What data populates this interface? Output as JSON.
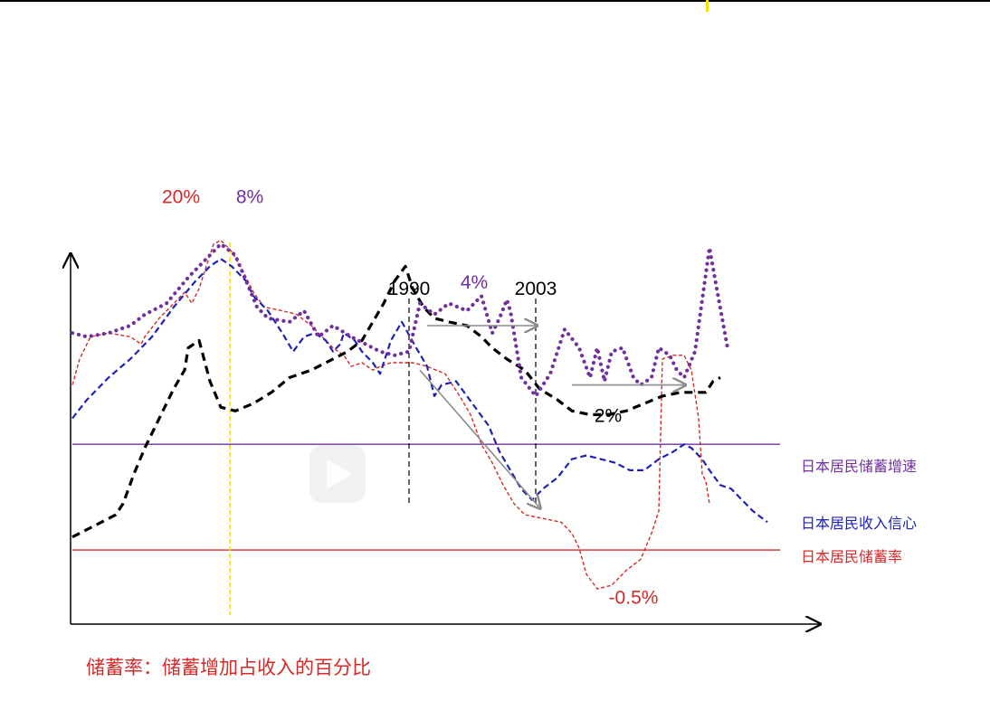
{
  "chart_data": {
    "type": "line",
    "title": "",
    "xlabel": "",
    "ylabel": "",
    "legend_placement": "right",
    "colors": {
      "savings_growth": "#7030a0",
      "income_confidence": "#1f22b4",
      "savings_rate": "#d42a2a",
      "black_series": "#000000",
      "guide_yellow": "#f2e600",
      "arrow_gray": "#8c8c8c"
    },
    "series": [
      {
        "id": "savings_growth",
        "name": "日本居民储蓄增速",
        "style": "dotted",
        "legend_line_y": 0.48,
        "points": [
          [
            0,
            0.78
          ],
          [
            0.02,
            0.77
          ],
          [
            0.05,
            0.78
          ],
          [
            0.08,
            0.8
          ],
          [
            0.1,
            0.83
          ],
          [
            0.13,
            0.86
          ],
          [
            0.16,
            0.93
          ],
          [
            0.18,
            0.97
          ],
          [
            0.205,
            1.02
          ],
          [
            0.225,
            0.99
          ],
          [
            0.24,
            0.92
          ],
          [
            0.255,
            0.85
          ],
          [
            0.27,
            0.82
          ],
          [
            0.3,
            0.81
          ],
          [
            0.32,
            0.84
          ],
          [
            0.34,
            0.77
          ],
          [
            0.36,
            0.8
          ],
          [
            0.385,
            0.77
          ],
          [
            0.405,
            0.75
          ],
          [
            0.425,
            0.73
          ],
          [
            0.445,
            0.72
          ],
          [
            0.465,
            0.73
          ],
          [
            0.48,
            0.86
          ],
          [
            0.5,
            0.83
          ],
          [
            0.52,
            0.86
          ],
          [
            0.545,
            0.84
          ],
          [
            0.565,
            0.88
          ],
          [
            0.58,
            0.78
          ],
          [
            0.59,
            0.82
          ],
          [
            0.6,
            0.87
          ],
          [
            0.605,
            0.84
          ],
          [
            0.62,
            0.66
          ],
          [
            0.64,
            0.61
          ],
          [
            0.66,
            0.67
          ],
          [
            0.68,
            0.79
          ],
          [
            0.7,
            0.74
          ],
          [
            0.715,
            0.66
          ],
          [
            0.725,
            0.74
          ],
          [
            0.735,
            0.65
          ],
          [
            0.745,
            0.73
          ],
          [
            0.76,
            0.74
          ],
          [
            0.775,
            0.66
          ],
          [
            0.785,
            0.64
          ],
          [
            0.8,
            0.66
          ],
          [
            0.81,
            0.74
          ],
          [
            0.825,
            0.72
          ],
          [
            0.835,
            0.68
          ],
          [
            0.845,
            0.66
          ],
          [
            0.86,
            0.73
          ],
          [
            0.88,
            1.01
          ],
          [
            0.89,
            0.9
          ],
          [
            0.905,
            0.74
          ]
        ]
      },
      {
        "id": "income_confidence",
        "name": "日本居民收入信心",
        "style": "dashed",
        "legend_line_y": null,
        "points": [
          [
            0,
            0.55
          ],
          [
            0.02,
            0.6
          ],
          [
            0.05,
            0.66
          ],
          [
            0.08,
            0.71
          ],
          [
            0.11,
            0.77
          ],
          [
            0.14,
            0.85
          ],
          [
            0.17,
            0.92
          ],
          [
            0.19,
            0.96
          ],
          [
            0.205,
            0.98
          ],
          [
            0.22,
            0.96
          ],
          [
            0.24,
            0.92
          ],
          [
            0.25,
            0.88
          ],
          [
            0.27,
            0.84
          ],
          [
            0.29,
            0.78
          ],
          [
            0.305,
            0.73
          ],
          [
            0.32,
            0.77
          ],
          [
            0.335,
            0.78
          ],
          [
            0.35,
            0.76
          ],
          [
            0.36,
            0.73
          ],
          [
            0.37,
            0.75
          ],
          [
            0.375,
            0.78
          ],
          [
            0.39,
            0.76
          ],
          [
            0.4,
            0.73
          ],
          [
            0.415,
            0.7
          ],
          [
            0.425,
            0.67
          ],
          [
            0.44,
            0.76
          ],
          [
            0.455,
            0.81
          ],
          [
            0.475,
            0.74
          ],
          [
            0.49,
            0.69
          ],
          [
            0.5,
            0.61
          ],
          [
            0.51,
            0.64
          ],
          [
            0.53,
            0.65
          ],
          [
            0.545,
            0.61
          ],
          [
            0.56,
            0.57
          ],
          [
            0.575,
            0.53
          ],
          [
            0.59,
            0.46
          ],
          [
            0.605,
            0.41
          ],
          [
            0.62,
            0.36
          ],
          [
            0.635,
            0.33
          ],
          [
            0.65,
            0.36
          ],
          [
            0.67,
            0.39
          ],
          [
            0.69,
            0.44
          ],
          [
            0.71,
            0.45
          ],
          [
            0.73,
            0.44
          ],
          [
            0.75,
            0.43
          ],
          [
            0.77,
            0.41
          ],
          [
            0.79,
            0.41
          ],
          [
            0.81,
            0.44
          ],
          [
            0.83,
            0.46
          ],
          [
            0.845,
            0.48
          ],
          [
            0.855,
            0.47
          ],
          [
            0.87,
            0.44
          ],
          [
            0.88,
            0.41
          ],
          [
            0.895,
            0.37
          ],
          [
            0.91,
            0.36
          ],
          [
            0.925,
            0.33
          ],
          [
            0.94,
            0.3
          ],
          [
            0.96,
            0.27
          ]
        ]
      },
      {
        "id": "savings_rate",
        "name": "日本居民储蓄率",
        "style": "dashed-thin",
        "legend_line_y": 0.195,
        "points": [
          [
            0,
            0.64
          ],
          [
            0.01,
            0.71
          ],
          [
            0.025,
            0.77
          ],
          [
            0.05,
            0.78
          ],
          [
            0.08,
            0.77
          ],
          [
            0.095,
            0.75
          ],
          [
            0.1,
            0.77
          ],
          [
            0.12,
            0.82
          ],
          [
            0.14,
            0.86
          ],
          [
            0.155,
            0.89
          ],
          [
            0.165,
            0.86
          ],
          [
            0.175,
            0.9
          ],
          [
            0.185,
            0.96
          ],
          [
            0.195,
            1.02
          ],
          [
            0.205,
            1.03
          ],
          [
            0.22,
            1.0
          ],
          [
            0.235,
            0.95
          ],
          [
            0.25,
            0.89
          ],
          [
            0.265,
            0.85
          ],
          [
            0.29,
            0.84
          ],
          [
            0.31,
            0.83
          ],
          [
            0.33,
            0.8
          ],
          [
            0.345,
            0.77
          ],
          [
            0.36,
            0.74
          ],
          [
            0.375,
            0.72
          ],
          [
            0.385,
            0.69
          ],
          [
            0.4,
            0.7
          ],
          [
            0.415,
            0.68
          ],
          [
            0.425,
            0.69
          ],
          [
            0.44,
            0.7
          ],
          [
            0.455,
            0.7
          ],
          [
            0.47,
            0.7
          ],
          [
            0.49,
            0.69
          ],
          [
            0.515,
            0.67
          ],
          [
            0.535,
            0.61
          ],
          [
            0.55,
            0.56
          ],
          [
            0.565,
            0.48
          ],
          [
            0.58,
            0.43
          ],
          [
            0.595,
            0.37
          ],
          [
            0.61,
            0.32
          ],
          [
            0.625,
            0.29
          ],
          [
            0.65,
            0.28
          ],
          [
            0.675,
            0.27
          ],
          [
            0.69,
            0.24
          ],
          [
            0.7,
            0.2
          ],
          [
            0.71,
            0.13
          ],
          [
            0.725,
            0.09
          ],
          [
            0.745,
            0.1
          ],
          [
            0.765,
            0.14
          ],
          [
            0.785,
            0.17
          ],
          [
            0.8,
            0.24
          ],
          [
            0.81,
            0.3
          ],
          [
            0.815,
            0.71
          ],
          [
            0.83,
            0.72
          ],
          [
            0.845,
            0.72
          ],
          [
            0.855,
            0.68
          ],
          [
            0.865,
            0.55
          ],
          [
            0.87,
            0.4
          ],
          [
            0.875,
            0.38
          ],
          [
            0.88,
            0.32
          ]
        ]
      },
      {
        "id": "black_series",
        "name": "",
        "style": "dashed-thick",
        "legend_line_y": null,
        "points": [
          [
            0,
            0.23
          ],
          [
            0.02,
            0.25
          ],
          [
            0.04,
            0.27
          ],
          [
            0.06,
            0.29
          ],
          [
            0.07,
            0.32
          ],
          [
            0.085,
            0.4
          ],
          [
            0.1,
            0.47
          ],
          [
            0.12,
            0.55
          ],
          [
            0.14,
            0.63
          ],
          [
            0.155,
            0.68
          ],
          [
            0.16,
            0.74
          ],
          [
            0.175,
            0.76
          ],
          [
            0.19,
            0.65
          ],
          [
            0.205,
            0.58
          ],
          [
            0.225,
            0.57
          ],
          [
            0.25,
            0.59
          ],
          [
            0.275,
            0.62
          ],
          [
            0.3,
            0.66
          ],
          [
            0.33,
            0.68
          ],
          [
            0.36,
            0.71
          ],
          [
            0.38,
            0.73
          ],
          [
            0.4,
            0.76
          ],
          [
            0.43,
            0.86
          ],
          [
            0.445,
            0.92
          ],
          [
            0.46,
            0.96
          ],
          [
            0.47,
            0.9
          ],
          [
            0.485,
            0.85
          ],
          [
            0.5,
            0.82
          ],
          [
            0.52,
            0.81
          ],
          [
            0.545,
            0.8
          ],
          [
            0.565,
            0.77
          ],
          [
            0.58,
            0.74
          ],
          [
            0.6,
            0.71
          ],
          [
            0.625,
            0.68
          ],
          [
            0.645,
            0.63
          ],
          [
            0.67,
            0.6
          ],
          [
            0.69,
            0.57
          ],
          [
            0.715,
            0.56
          ],
          [
            0.74,
            0.56
          ],
          [
            0.765,
            0.57
          ],
          [
            0.79,
            0.59
          ],
          [
            0.815,
            0.61
          ],
          [
            0.84,
            0.62
          ],
          [
            0.86,
            0.62
          ],
          [
            0.875,
            0.62
          ],
          [
            0.885,
            0.65
          ],
          [
            0.895,
            0.66
          ]
        ]
      }
    ],
    "vertical_markers": [
      {
        "label": "1990",
        "x": 0.465
      },
      {
        "label": "2003",
        "x": 0.64
      },
      {
        "label": "",
        "x": 0.23,
        "color": "guide_yellow"
      }
    ],
    "arrows": [
      {
        "from": [
          0.49,
          0.8
        ],
        "to": [
          0.64,
          0.8
        ]
      },
      {
        "from": [
          0.69,
          0.64
        ],
        "to": [
          0.845,
          0.64
        ]
      },
      {
        "from": [
          0.48,
          0.68
        ],
        "to": [
          0.645,
          0.31
        ]
      }
    ],
    "annotations": [
      {
        "text": "20%",
        "x": 0.15,
        "y": 1.13,
        "color": "savings_rate"
      },
      {
        "text": "8%",
        "x": 0.245,
        "y": 1.13,
        "color": "savings_growth"
      },
      {
        "text": "4%",
        "x": 0.555,
        "y": 0.9,
        "color": "savings_growth"
      },
      {
        "text": "2%",
        "x": 0.74,
        "y": 0.54,
        "color": "black_series"
      },
      {
        "text": "-0.5%",
        "x": 0.775,
        "y": 0.05,
        "color": "savings_rate"
      }
    ],
    "legend": [
      {
        "series": "savings_growth",
        "label": "日本居民储蓄增速"
      },
      {
        "series": "income_confidence",
        "label": "日本居民收入信心"
      },
      {
        "series": "savings_rate",
        "label": "日本居民储蓄率"
      }
    ]
  },
  "footnote": {
    "text": "储蓄率：储蓄增加占收入的百分比",
    "color": "#d42a2a"
  }
}
